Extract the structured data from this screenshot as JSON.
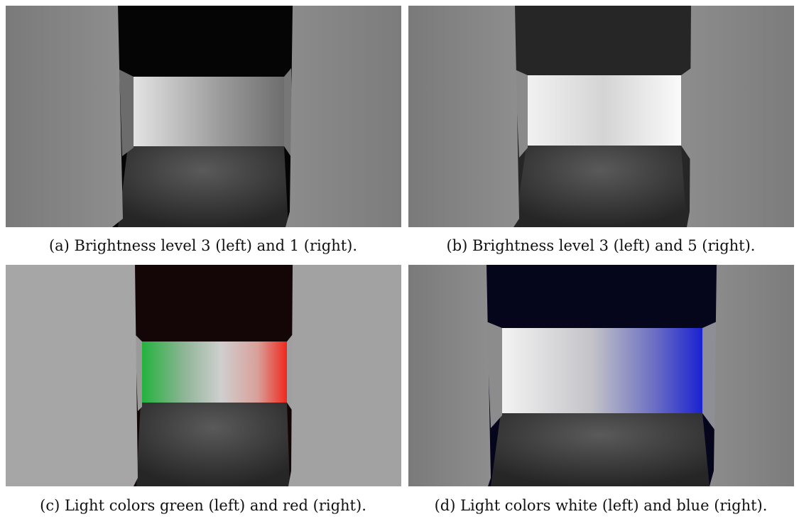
{
  "figure": {
    "panels": [
      {
        "caption": "(a) Brightness level 3 (left) and 1 (right)."
      },
      {
        "caption": "(b) Brightness level 3 (left) and 5 (right)."
      },
      {
        "caption": "(c) Light colors green (left) and red (right)."
      },
      {
        "caption": "(d) Light colors white (left) and blue (right)."
      }
    ]
  }
}
